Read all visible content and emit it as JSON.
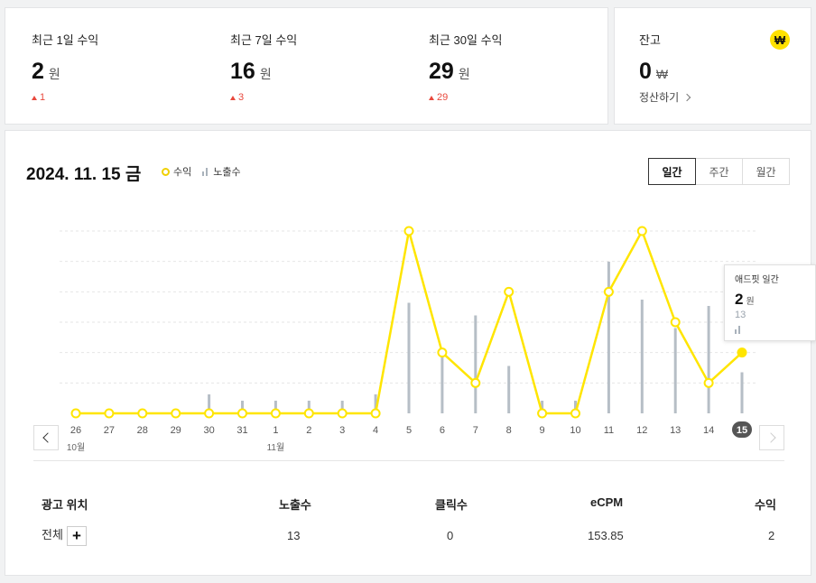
{
  "summary": [
    {
      "label": "최근 1일 수익",
      "value": "2",
      "unit": "원",
      "change": "1"
    },
    {
      "label": "최근 7일 수익",
      "value": "16",
      "unit": "원",
      "change": "3"
    },
    {
      "label": "최근 30일 수익",
      "value": "29",
      "unit": "원",
      "change": "29"
    }
  ],
  "balance": {
    "label": "잔고",
    "value": "0",
    "unit": "₩",
    "badge": "₩",
    "settle_link": "정산하기"
  },
  "header": {
    "date": "2024. 11. 15 금"
  },
  "legend": {
    "revenue": "수익",
    "impressions": "노출수"
  },
  "period_tabs": [
    {
      "label": "일간",
      "active": true
    },
    {
      "label": "주간",
      "active": false
    },
    {
      "label": "월간",
      "active": false
    }
  ],
  "colors": {
    "revenue_line": "#ffe500",
    "impression_bar": "#b6bec6",
    "up": "#e8483c"
  },
  "chart_data": {
    "type": "line",
    "x": [
      "26",
      "27",
      "28",
      "29",
      "30",
      "31",
      "1",
      "2",
      "3",
      "4",
      "5",
      "6",
      "7",
      "8",
      "9",
      "10",
      "11",
      "12",
      "13",
      "14",
      "15"
    ],
    "month_labels": [
      {
        "index": 0,
        "label": "10월"
      },
      {
        "index": 6,
        "label": "11월"
      }
    ],
    "selected_index": 20,
    "series": [
      {
        "name": "수익",
        "type": "line",
        "values": [
          0,
          0,
          0,
          0,
          0,
          0,
          0,
          0,
          0,
          0,
          6,
          2,
          1,
          4,
          0,
          0,
          4,
          6,
          3,
          1,
          2
        ]
      },
      {
        "name": "노출수",
        "type": "bar",
        "values": [
          0,
          0,
          0,
          0,
          6,
          4,
          4,
          4,
          4,
          6,
          35,
          18,
          31,
          15,
          4,
          4,
          48,
          36,
          27,
          34,
          13
        ]
      }
    ],
    "grid": true
  },
  "tooltip": {
    "title": "애드핏 일간",
    "value": "2",
    "unit": "원",
    "impressions": "13"
  },
  "table": {
    "headers": {
      "position": "광고 위치",
      "impressions": "노출수",
      "clicks": "클릭수",
      "ecpm": "eCPM",
      "revenue": "수익"
    },
    "row": {
      "position": "전체",
      "impressions": "13",
      "clicks": "0",
      "ecpm": "153.85",
      "revenue": "2"
    },
    "expand_label": "+"
  }
}
